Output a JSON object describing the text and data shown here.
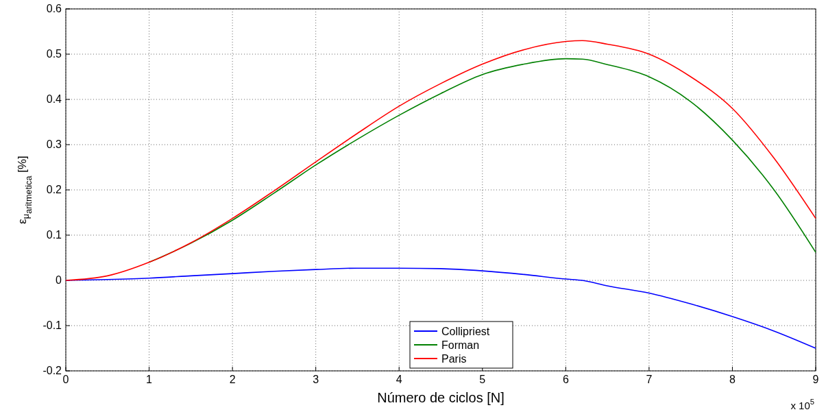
{
  "chart_data": {
    "type": "line",
    "xlabel": "Número de ciclos [N]",
    "ylabel": "ε$_{μ}$$_{aritmetica}$ [%]",
    "annotations": [
      "x 10$^{5}$"
    ],
    "x": [
      0,
      0.5,
      1,
      1.5,
      2,
      2.5,
      3,
      3.5,
      4,
      4.5,
      5,
      5.5,
      6,
      6.2,
      6.5,
      7,
      7.5,
      8,
      8.5,
      9
    ],
    "series": [
      {
        "name": "Collipriest",
        "color": "#0000ff",
        "values": [
          0,
          0.002,
          0.005,
          0.01,
          0.015,
          0.02,
          0.024,
          0.027,
          0.027,
          0.026,
          0.021,
          0.013,
          0.003,
          0,
          -0.012,
          -0.028,
          -0.052,
          -0.08,
          -0.112,
          -0.15
        ]
      },
      {
        "name": "Forman",
        "color": "#008000",
        "values": [
          null,
          null,
          0.04,
          0.082,
          0.133,
          0.193,
          0.255,
          0.312,
          0.365,
          0.413,
          0.455,
          0.478,
          0.49,
          0.489,
          0.477,
          0.45,
          0.395,
          0.31,
          0.2,
          0.062
        ]
      },
      {
        "name": "Paris",
        "color": "#ff0000",
        "values": [
          0,
          0.01,
          0.04,
          0.083,
          0.137,
          0.198,
          0.262,
          0.325,
          0.385,
          0.435,
          0.478,
          0.51,
          0.528,
          0.53,
          0.522,
          0.5,
          0.45,
          0.38,
          0.27,
          0.137
        ]
      }
    ],
    "xlim": [
      0,
      9
    ],
    "xticks": [
      0,
      1,
      2,
      3,
      4,
      5,
      6,
      7,
      8,
      9
    ],
    "ylim": [
      -0.2,
      0.6
    ],
    "yticks": [
      -0.2,
      -0.1,
      0,
      0.1,
      0.2,
      0.3,
      0.4,
      0.5,
      0.6
    ],
    "grid": true,
    "legend": "bottom",
    "line_style": "solid"
  }
}
